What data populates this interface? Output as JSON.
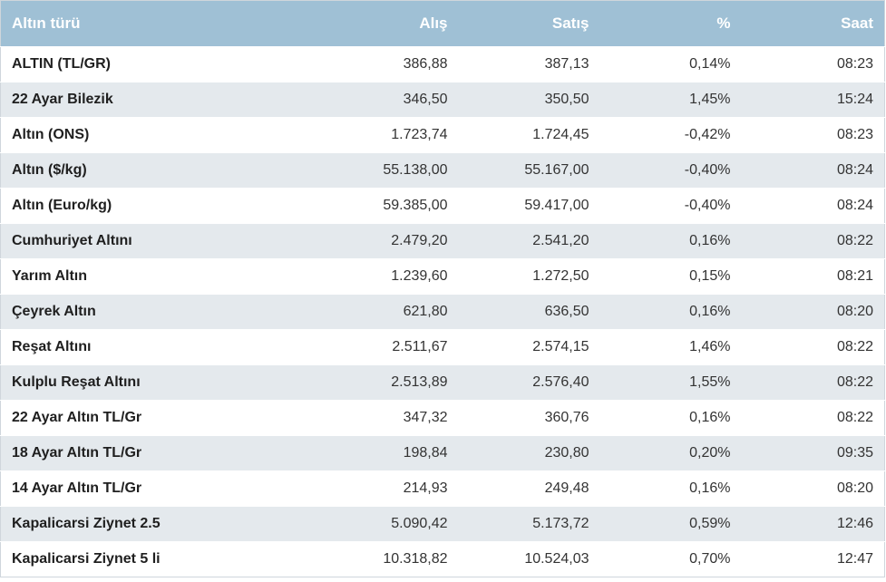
{
  "table": {
    "headers": {
      "name": "Altın türü",
      "buy": "Alış",
      "sell": "Satış",
      "pct": "%",
      "time": "Saat"
    },
    "rows": [
      {
        "name": "ALTIN (TL/GR)",
        "buy": "386,88",
        "sell": "387,13",
        "pct": "0,14%",
        "time": "08:23"
      },
      {
        "name": "22 Ayar Bilezik",
        "buy": "346,50",
        "sell": "350,50",
        "pct": "1,45%",
        "time": "15:24"
      },
      {
        "name": "Altın (ONS)",
        "buy": "1.723,74",
        "sell": "1.724,45",
        "pct": "-0,42%",
        "time": "08:23"
      },
      {
        "name": "Altın ($/kg)",
        "buy": "55.138,00",
        "sell": "55.167,00",
        "pct": "-0,40%",
        "time": "08:24"
      },
      {
        "name": "Altın (Euro/kg)",
        "buy": "59.385,00",
        "sell": "59.417,00",
        "pct": "-0,40%",
        "time": "08:24"
      },
      {
        "name": "Cumhuriyet Altını",
        "buy": "2.479,20",
        "sell": "2.541,20",
        "pct": "0,16%",
        "time": "08:22"
      },
      {
        "name": "Yarım Altın",
        "buy": "1.239,60",
        "sell": "1.272,50",
        "pct": "0,15%",
        "time": "08:21"
      },
      {
        "name": "Çeyrek Altın",
        "buy": "621,80",
        "sell": "636,50",
        "pct": "0,16%",
        "time": "08:20"
      },
      {
        "name": "Reşat Altını",
        "buy": "2.511,67",
        "sell": "2.574,15",
        "pct": "1,46%",
        "time": "08:22"
      },
      {
        "name": "Kulplu Reşat Altını",
        "buy": "2.513,89",
        "sell": "2.576,40",
        "pct": "1,55%",
        "time": "08:22"
      },
      {
        "name": "22 Ayar Altın TL/Gr",
        "buy": "347,32",
        "sell": "360,76",
        "pct": "0,16%",
        "time": "08:22"
      },
      {
        "name": "18 Ayar Altın TL/Gr",
        "buy": "198,84",
        "sell": "230,80",
        "pct": "0,20%",
        "time": "09:35"
      },
      {
        "name": "14 Ayar Altın TL/Gr",
        "buy": "214,93",
        "sell": "249,48",
        "pct": "0,16%",
        "time": "08:20"
      },
      {
        "name": "Kapalicarsi Ziynet 2.5",
        "buy": "5.090,42",
        "sell": "5.173,72",
        "pct": "0,59%",
        "time": "12:46"
      },
      {
        "name": "Kapalicarsi Ziynet 5 li",
        "buy": "10.318,82",
        "sell": "10.524,03",
        "pct": "0,70%",
        "time": "12:47"
      }
    ]
  },
  "colors": {
    "header_bg": "#9fc0d5",
    "header_text": "#ffffff",
    "row_alt_bg": "#e4e9ed"
  }
}
